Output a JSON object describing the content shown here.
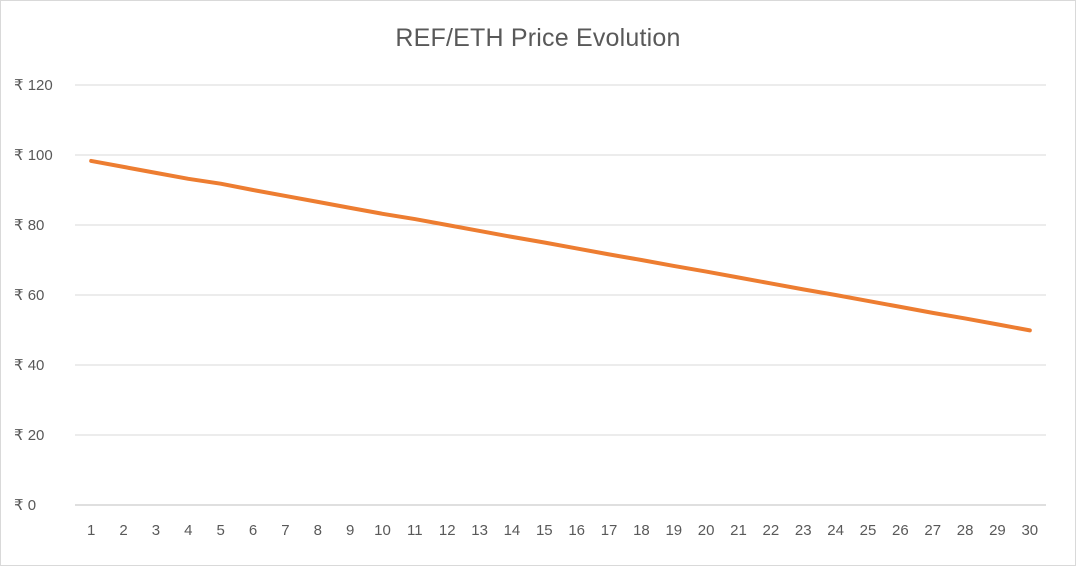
{
  "chart": {
    "title": "REF/ETH Price Evolution"
  },
  "chart_data": {
    "type": "line",
    "title": "REF/ETH Price Evolution",
    "xlabel": "",
    "ylabel": "",
    "x": [
      1,
      2,
      3,
      4,
      5,
      6,
      7,
      8,
      9,
      10,
      11,
      12,
      13,
      14,
      15,
      16,
      17,
      18,
      19,
      20,
      21,
      22,
      23,
      24,
      25,
      26,
      27,
      28,
      29,
      30
    ],
    "series": [
      {
        "color": "#ED7D31",
        "values": [
          98.3,
          96.6,
          94.9,
          93.2,
          91.8,
          90.0,
          88.3,
          86.6,
          84.9,
          83.2,
          81.7,
          80.0,
          78.3,
          76.6,
          75.0,
          73.3,
          71.6,
          70.0,
          68.3,
          66.7,
          65.0,
          63.3,
          61.6,
          60.0,
          58.3,
          56.6,
          54.9,
          53.3,
          51.6,
          49.9
        ]
      }
    ],
    "ylim": [
      0,
      120
    ],
    "y_ticks": [
      0,
      20,
      40,
      60,
      80,
      100,
      120
    ],
    "y_tick_labels": [
      "₹ 0",
      "₹ 20",
      "₹ 40",
      "₹ 60",
      "₹ 80",
      "₹ 100",
      "₹ 120"
    ],
    "x_tick_labels": [
      "1",
      "2",
      "3",
      "4",
      "5",
      "6",
      "7",
      "8",
      "9",
      "10",
      "11",
      "12",
      "13",
      "14",
      "15",
      "16",
      "17",
      "18",
      "19",
      "20",
      "21",
      "22",
      "23",
      "24",
      "25",
      "26",
      "27",
      "28",
      "29",
      "30"
    ],
    "grid": true,
    "legend": "none",
    "colors": {
      "gridline": "#d9d9d9",
      "axis": "#bfbfbf",
      "text": "#595959"
    }
  }
}
